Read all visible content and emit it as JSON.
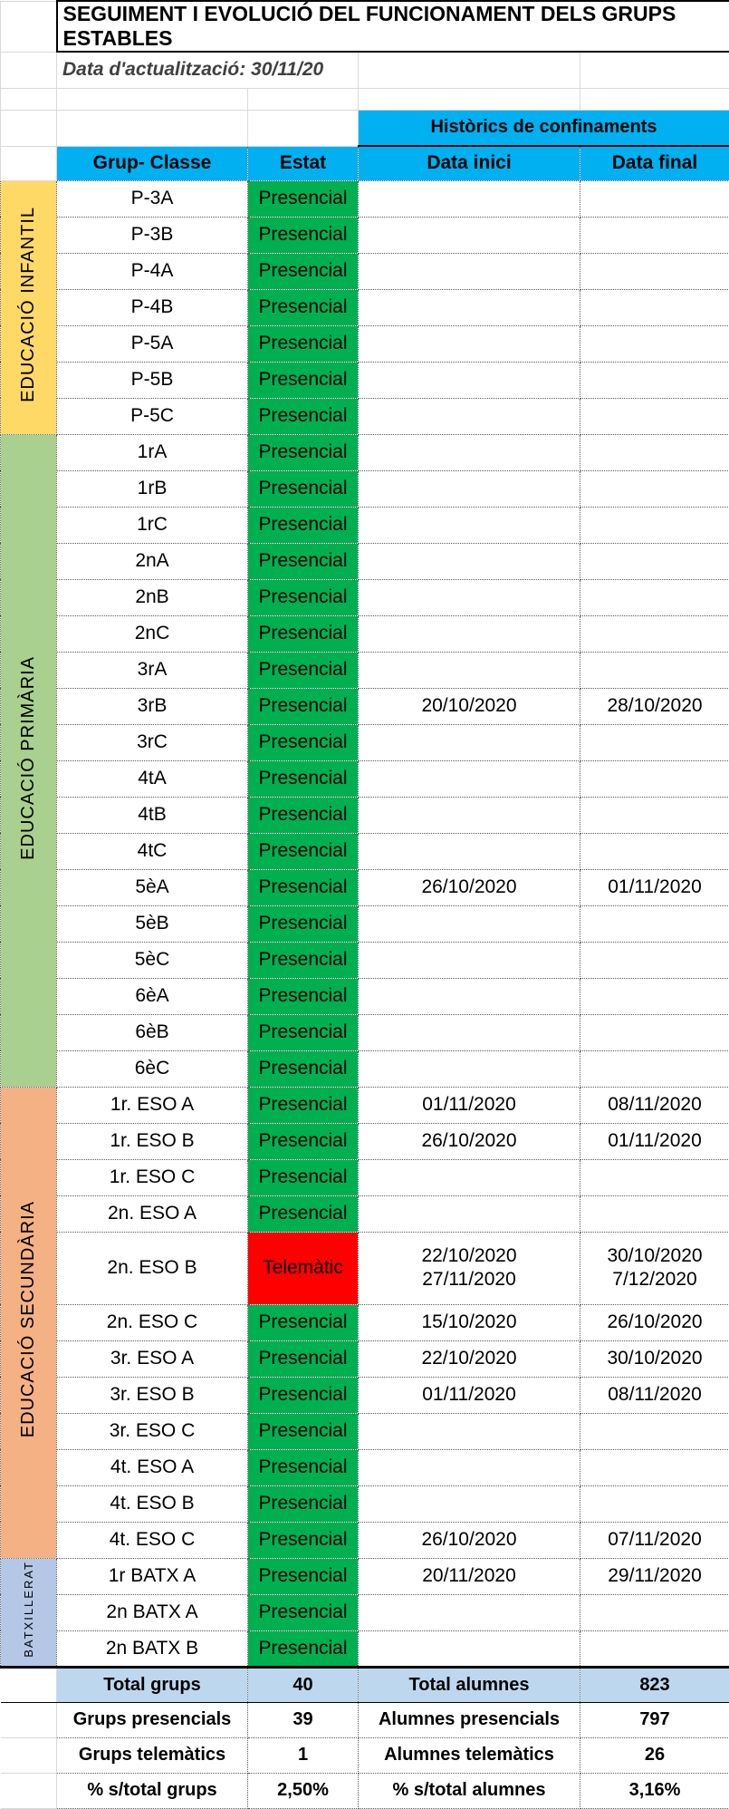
{
  "title": "SEGUIMENT I EVOLUCIÓ DEL FUNCIONAMENT DELS GRUPS ESTABLES",
  "update_date": "Data d'actualització: 30/11/20",
  "history_header": "Històrics de confinaments",
  "columns": {
    "group": "Grup- Classe",
    "status": "Estat",
    "start": "Data inici",
    "end": "Data final"
  },
  "colors": {
    "header_blue": "#00B0F0",
    "presencial": "#00B050",
    "telematic": "#FF0000",
    "infantil": "#FFD966",
    "primaria": "#A9D08E",
    "secundaria": "#F4B183",
    "batxillerat": "#B4C7E7",
    "summary_highlight": "#BDD7EE"
  },
  "sections": [
    {
      "name": "EDUCACIÓ INFANTIL",
      "color": "#FFD966",
      "rows": [
        {
          "group": "P-3A",
          "status": "Presencial",
          "status_type": "presencial"
        },
        {
          "group": "P-3B",
          "status": "Presencial",
          "status_type": "presencial"
        },
        {
          "group": "P-4A",
          "status": "Presencial",
          "status_type": "presencial"
        },
        {
          "group": "P-4B",
          "status": "Presencial",
          "status_type": "presencial"
        },
        {
          "group": "P-5A",
          "status": "Presencial",
          "status_type": "presencial"
        },
        {
          "group": "P-5B",
          "status": "Presencial",
          "status_type": "presencial"
        },
        {
          "group": "P-5C",
          "status": "Presencial",
          "status_type": "presencial"
        }
      ]
    },
    {
      "name": "EDUCACIÓ PRIMÀRIA",
      "color": "#A9D08E",
      "rows": [
        {
          "group": "1rA",
          "status": "Presencial",
          "status_type": "presencial"
        },
        {
          "group": "1rB",
          "status": "Presencial",
          "status_type": "presencial"
        },
        {
          "group": "1rC",
          "status": "Presencial",
          "status_type": "presencial"
        },
        {
          "group": "2nA",
          "status": "Presencial",
          "status_type": "presencial"
        },
        {
          "group": "2nB",
          "status": "Presencial",
          "status_type": "presencial"
        },
        {
          "group": "2nC",
          "status": "Presencial",
          "status_type": "presencial"
        },
        {
          "group": "3rA",
          "status": "Presencial",
          "status_type": "presencial"
        },
        {
          "group": "3rB",
          "status": "Presencial",
          "status_type": "presencial",
          "start": "20/10/2020",
          "end": "28/10/2020"
        },
        {
          "group": "3rC",
          "status": "Presencial",
          "status_type": "presencial"
        },
        {
          "group": "4tA",
          "status": "Presencial",
          "status_type": "presencial"
        },
        {
          "group": "4tB",
          "status": "Presencial",
          "status_type": "presencial"
        },
        {
          "group": "4tC",
          "status": "Presencial",
          "status_type": "presencial"
        },
        {
          "group": "5èA",
          "status": "Presencial",
          "status_type": "presencial",
          "start": "26/10/2020",
          "end": "01/11/2020"
        },
        {
          "group": "5èB",
          "status": "Presencial",
          "status_type": "presencial"
        },
        {
          "group": "5èC",
          "status": "Presencial",
          "status_type": "presencial"
        },
        {
          "group": "6èA",
          "status": "Presencial",
          "status_type": "presencial"
        },
        {
          "group": "6èB",
          "status": "Presencial",
          "status_type": "presencial"
        },
        {
          "group": "6èC",
          "status": "Presencial",
          "status_type": "presencial"
        }
      ]
    },
    {
      "name": "EDUCACIÓ SECUNDÀRIA",
      "color": "#F4B183",
      "rows": [
        {
          "group": "1r. ESO A",
          "status": "Presencial",
          "status_type": "presencial",
          "start": "01/11/2020",
          "end": "08/11/2020"
        },
        {
          "group": "1r. ESO B",
          "status": "Presencial",
          "status_type": "presencial",
          "start": "26/10/2020",
          "end": "01/11/2020"
        },
        {
          "group": "1r. ESO C",
          "status": "Presencial",
          "status_type": "presencial"
        },
        {
          "group": "2n. ESO A",
          "status": "Presencial",
          "status_type": "presencial"
        },
        {
          "group": "2n. ESO B",
          "status": "Telemàtic",
          "status_type": "telematic",
          "tall": true,
          "start": "22/10/2020\n27/11/2020",
          "end": "30/10/2020\n7/12/2020"
        },
        {
          "group": "2n. ESO C",
          "status": "Presencial",
          "status_type": "presencial",
          "start": "15/10/2020",
          "end": "26/10/2020"
        },
        {
          "group": "3r. ESO A",
          "status": "Presencial",
          "status_type": "presencial",
          "start": "22/10/2020",
          "end": "30/10/2020"
        },
        {
          "group": "3r. ESO B",
          "status": "Presencial",
          "status_type": "presencial",
          "start": "01/11/2020",
          "end": "08/11/2020"
        },
        {
          "group": "3r. ESO C",
          "status": "Presencial",
          "status_type": "presencial"
        },
        {
          "group": "4t. ESO A",
          "status": "Presencial",
          "status_type": "presencial"
        },
        {
          "group": "4t. ESO B",
          "status": "Presencial",
          "status_type": "presencial"
        },
        {
          "group": "4t. ESO C",
          "status": "Presencial",
          "status_type": "presencial",
          "start": "26/10/2020",
          "end": "07/11/2020"
        }
      ]
    },
    {
      "name": "BATXILLERAT",
      "color": "#B4C7E7",
      "small": true,
      "rows": [
        {
          "group": "1r BATX A",
          "status": "Presencial",
          "status_type": "presencial",
          "start": "20/11/2020",
          "end": "29/11/2020"
        },
        {
          "group": "2n BATX A",
          "status": "Presencial",
          "status_type": "presencial"
        },
        {
          "group": "2n BATX B",
          "status": "Presencial",
          "status_type": "presencial"
        }
      ]
    }
  ],
  "summary": [
    {
      "left_label": "Total grups",
      "left_value": "40",
      "right_label": "Total alumnes",
      "right_value": "823",
      "highlight": true
    },
    {
      "left_label": "Grups presencials",
      "left_value": "39",
      "right_label": "Alumnes presencials",
      "right_value": "797"
    },
    {
      "left_label": "Grups telemàtics",
      "left_value": "1",
      "right_label": "Alumnes telemàtics",
      "right_value": "26"
    },
    {
      "left_label": "% s/total grups",
      "left_value": "2,50%",
      "right_label": "% s/total alumnes",
      "right_value": "3,16%"
    }
  ]
}
